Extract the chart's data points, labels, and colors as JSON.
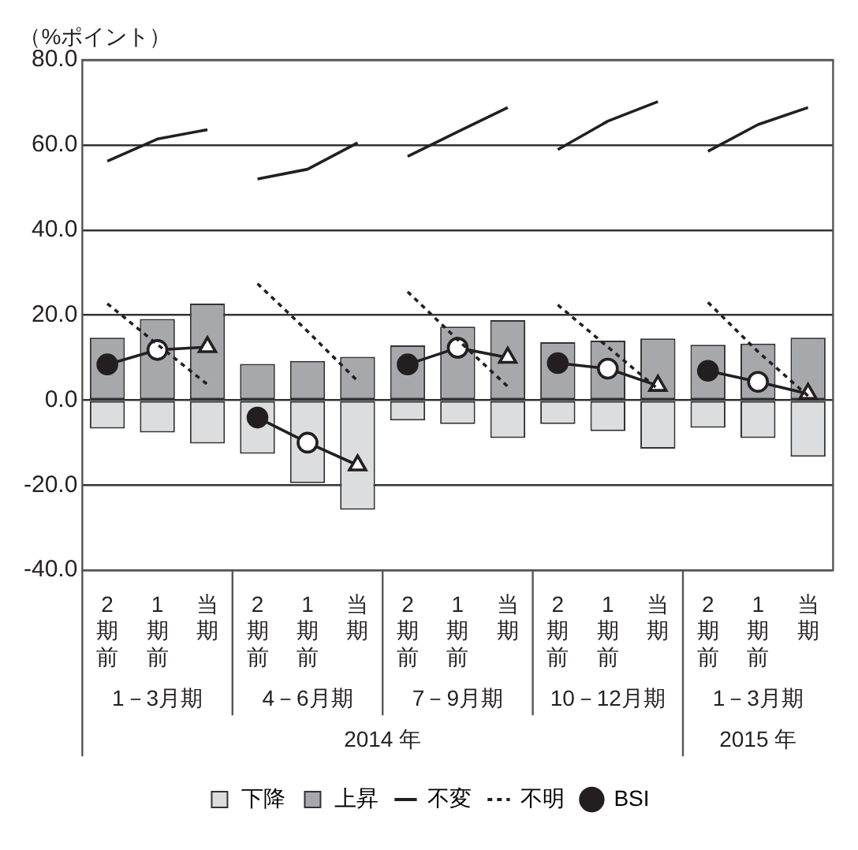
{
  "chart_data": {
    "type": "bar",
    "ylabel": "（%ポイント）",
    "stacked": true,
    "grid": "y",
    "legend": "bottom",
    "categories": [
      "2期前",
      "1期前",
      "当期",
      "2期前",
      "1期前",
      "当期",
      "2期前",
      "1期前",
      "当期",
      "2期前",
      "1期前",
      "当期",
      "2期前",
      "1期前",
      "当期"
    ],
    "annotations": [
      "1－3月期",
      "4－6月期",
      "7－9月期",
      "10－12月期",
      "1－3月期",
      "2014 年",
      "2015 年"
    ],
    "ylim": [
      -40,
      80
    ],
    "yticks": [
      {
        "value": -40,
        "label": "-40.0"
      },
      {
        "value": -20,
        "label": "-20.0"
      },
      {
        "value": 0,
        "label": "0.0"
      },
      {
        "value": 20,
        "label": "20.0"
      },
      {
        "value": 40,
        "label": "40.0"
      },
      {
        "value": 60,
        "label": "60.0"
      },
      {
        "value": 80,
        "label": "80.0"
      }
    ],
    "series": [
      {
        "name": "下降",
        "type": "bar",
        "color": "#dcdddf",
        "values": [
          -6.7,
          -7.6,
          -10.2,
          -12.6,
          -19.5,
          -25.8,
          -4.8,
          -5.6,
          -8.9,
          -5.6,
          -7.3,
          -11.4,
          -6.5,
          -8.9,
          -13.3
        ]
      },
      {
        "name": "上昇",
        "type": "bar",
        "color": "#a7a8ab",
        "values": [
          14.7,
          19.1,
          22.7,
          8.5,
          9.2,
          10.2,
          12.9,
          17.3,
          18.8,
          13.6,
          14.0,
          14.5,
          13.0,
          13.3,
          14.7
        ]
      },
      {
        "name": "不変",
        "type": "line",
        "color": "#231f20",
        "line_style": "solid",
        "marker": "none",
        "values": [
          56.2,
          61.4,
          63.6,
          52.0,
          54.3,
          60.5,
          57.3,
          63.1,
          68.8,
          58.9,
          65.6,
          70.2,
          58.5,
          64.8,
          68.8
        ]
      },
      {
        "name": "不明",
        "type": "line",
        "color": "#231f20",
        "line_style": "dotted",
        "marker": "none",
        "values": [
          22.7,
          13.1,
          3.7,
          27.4,
          16.2,
          4.5,
          25.5,
          14.2,
          3.2,
          22.4,
          12.5,
          2.6,
          23.0,
          11.4,
          1.0
        ]
      },
      {
        "name": "BSI",
        "type": "line",
        "color": "#231f20",
        "line_style": "solid",
        "marker": "circle",
        "values": [
          8.4,
          11.8,
          12.5,
          -4.1,
          -10.0,
          -15.3,
          8.4,
          12.3,
          10.0,
          8.7,
          7.4,
          3.4,
          6.9,
          4.3,
          1.5
        ]
      }
    ]
  }
}
